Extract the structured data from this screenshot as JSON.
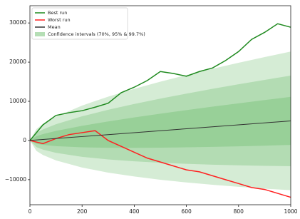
{
  "chart_data": {
    "type": "line",
    "xlim": [
      0,
      1000
    ],
    "ylim": [
      -16400,
      34400
    ],
    "xticks": [
      0,
      200,
      400,
      600,
      800,
      1000
    ],
    "yticks": [
      {
        "value": -10000,
        "label": "−10000"
      },
      0,
      10000,
      20000,
      30000
    ],
    "grid": false,
    "legend": "upper left",
    "x": [
      0,
      50,
      100,
      150,
      200,
      250,
      300,
      350,
      400,
      450,
      500,
      550,
      600,
      650,
      700,
      750,
      800,
      850,
      900,
      950,
      1000
    ],
    "series": [
      {
        "name": "Best run",
        "color": "#1f8a1f",
        "values": [
          0,
          4000,
          6400,
          7100,
          7600,
          8500,
          9500,
          12200,
          13600,
          15300,
          17600,
          17100,
          16400,
          17600,
          18500,
          20400,
          22700,
          25800,
          27600,
          29800,
          28900
        ]
      },
      {
        "name": "Worst run",
        "color": "#ff2020",
        "values": [
          0,
          -800,
          500,
          1500,
          2000,
          2500,
          0,
          -1500,
          -3000,
          -4500,
          -5500,
          -6500,
          -7500,
          -8000,
          -9000,
          -10000,
          -11000,
          -12000,
          -12500,
          -13500,
          -14500
        ]
      },
      {
        "name": "Mean",
        "color": "#333333",
        "values": [
          0,
          250,
          500,
          750,
          1000,
          1250,
          1500,
          1750,
          2000,
          2250,
          2500,
          2750,
          3000,
          3250,
          3500,
          3750,
          4000,
          4250,
          4500,
          4750,
          5000
        ]
      }
    ],
    "intervals": {
      "name": "Confidence intervals (70%, 95% & 99.7%)",
      "color": "#2ca02c",
      "x": [
        0,
        25,
        50,
        100,
        200,
        300,
        400,
        500,
        600,
        700,
        800,
        900,
        1000
      ],
      "bands": [
        {
          "upper": [
            0,
            2924,
            4207,
            6098,
            8917,
            11196,
            13196,
            15019,
            16710,
            18311,
            19834,
            21294,
            22700
          ],
          "lower": [
            0,
            -2674,
            -3707,
            -5098,
            -6917,
            -8196,
            -9196,
            -10019,
            -10710,
            -11311,
            -11834,
            -12294,
            -12700
          ]
        },
        {
          "upper": [
            0,
            1954,
            2835,
            4157,
            6172,
            7835,
            9315,
            10679,
            11957,
            13177,
            14345,
            15472,
            16564
          ],
          "lower": [
            0,
            -1704,
            -2335,
            -3157,
            -4172,
            -4835,
            -5315,
            -5679,
            -5957,
            -6177,
            -6345,
            -6472,
            -6564
          ]
        },
        {
          "upper": [
            0,
            1095,
            1622,
            2441,
            3745,
            4861,
            5881,
            6840,
            7753,
            8634,
            9489,
            10322,
            11136
          ],
          "lower": [
            0,
            -845,
            -1122,
            -1441,
            -1745,
            -1861,
            -1881,
            -1840,
            -1753,
            -1634,
            -1489,
            -1322,
            -1136
          ]
        }
      ]
    }
  }
}
